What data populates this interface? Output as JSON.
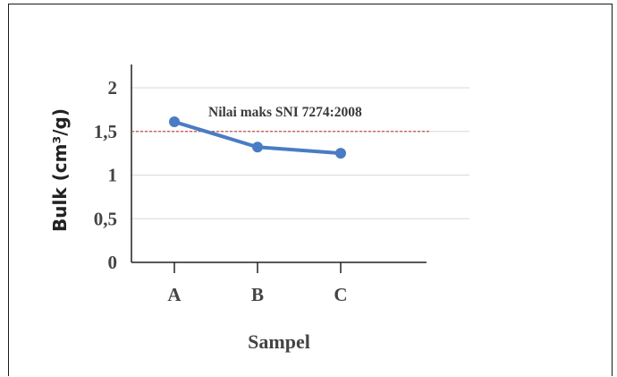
{
  "chart_data": {
    "type": "line",
    "title": "",
    "xlabel": "Sampel",
    "ylabel": "Bulk (cm³/g)",
    "categories": [
      "A",
      "B",
      "C"
    ],
    "series": [
      {
        "values": [
          1.61,
          1.32,
          1.25
        ],
        "color": "#4a7cc4"
      }
    ],
    "reference_line": {
      "label": "Nilai maks SNI 7274:2008",
      "value": 1.5,
      "color": "#c0504d",
      "style": "dashed"
    },
    "yticks": [
      "0",
      "0,5",
      "1",
      "1,5",
      "2"
    ],
    "ytick_values": [
      0,
      0.5,
      1,
      1.5,
      2
    ],
    "ylim": [
      0,
      2.2
    ],
    "grid": true,
    "legend": "none"
  }
}
